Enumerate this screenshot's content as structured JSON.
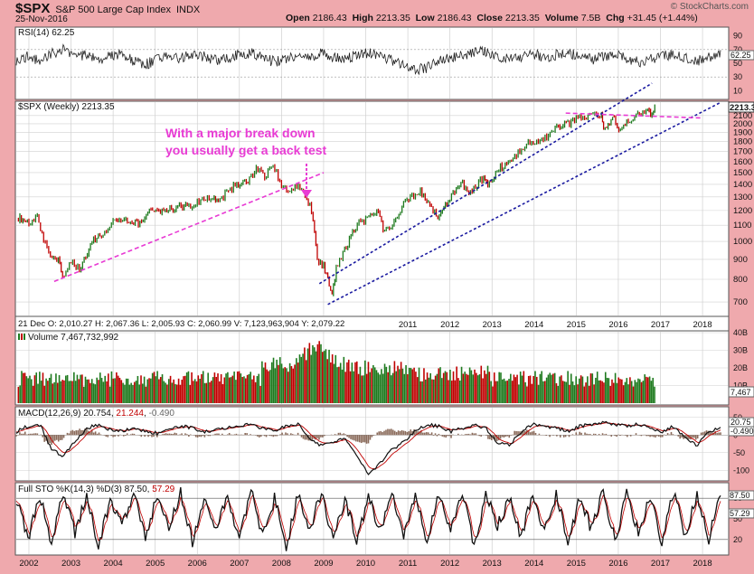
{
  "header": {
    "symbol": "$SPX",
    "name": "S&P 500 Large Cap Index",
    "exchange": "INDX",
    "date": "25-Nov-2016",
    "open_label": "Open",
    "open": "2186.43",
    "high_label": "High",
    "high": "2213.35",
    "low_label": "Low",
    "low": "2186.43",
    "close_label": "Close",
    "close": "2213.35",
    "volume_label": "Volume",
    "volume": "7.5B",
    "chg_label": "Chg",
    "chg": "+31.45 (+1.44%)",
    "watermark": "© StockCharts.com",
    "accent_up": "#1e7a1e",
    "accent_down": "#c00000"
  },
  "chart_data": [
    {
      "type": "line",
      "title": "RSI(14) 62.25",
      "value_label": "62.25",
      "yticks": [
        10,
        30,
        50,
        70,
        90
      ],
      "ylim": [
        0,
        100
      ],
      "reference_lines": [
        30,
        70
      ],
      "series": [
        {
          "values": [
            55,
            60,
            52,
            65,
            70,
            58,
            62,
            55,
            60,
            66,
            52,
            48,
            56,
            62,
            58,
            64,
            60,
            55,
            58,
            62,
            66,
            58,
            52,
            56,
            62,
            60,
            64,
            58,
            55,
            62,
            66,
            60,
            54,
            48,
            40,
            44,
            52,
            58,
            62,
            66,
            68,
            60,
            56,
            60,
            64,
            58,
            62,
            66,
            60,
            55,
            60,
            62,
            58,
            52,
            56,
            60,
            62,
            58,
            54,
            60,
            62.25
          ]
        }
      ]
    },
    {
      "type": "line",
      "title": "$SPX (Weekly) 2213.35",
      "price_label": "2213.35",
      "y_scale": "log",
      "yticks": [
        700,
        800,
        900,
        1000,
        1100,
        1200,
        1300,
        1400,
        1500,
        1600,
        1700,
        1800,
        1900,
        2000,
        2100
      ],
      "ylim": [
        650,
        2260
      ],
      "xlabels": [
        "2002",
        "2003",
        "2004",
        "2005",
        "2006",
        "2007",
        "2008",
        "2009",
        "2010",
        "2011",
        "2012",
        "2013",
        "2014",
        "2015",
        "2016",
        "2017",
        "2018"
      ],
      "crosshair_readout": "21 Dec O: 2,010.27   H: 2,067.36   L: 2,005.93   C: 2,060.99   V: 7,123,963,904   Y: 2,079.22",
      "series": [
        {
          "name": "SPX weekly close",
          "x": [
            2001.75,
            2002.0,
            2002.2,
            2002.35,
            2002.55,
            2002.7,
            2002.8,
            2003.0,
            2003.2,
            2003.5,
            2003.8,
            2004.0,
            2004.3,
            2004.6,
            2004.9,
            2005.2,
            2005.5,
            2005.8,
            2006.0,
            2006.4,
            2006.5,
            2006.9,
            2007.2,
            2007.4,
            2007.6,
            2007.8,
            2008.0,
            2008.2,
            2008.4,
            2008.6,
            2008.75,
            2008.85,
            2009.0,
            2009.1,
            2009.2,
            2009.3,
            2009.5,
            2009.8,
            2010.0,
            2010.3,
            2010.45,
            2010.6,
            2010.9,
            2011.3,
            2011.6,
            2011.75,
            2012.0,
            2012.3,
            2012.45,
            2012.8,
            2012.9,
            2013.2,
            2013.5,
            2013.9,
            2014.1,
            2014.5,
            2014.8,
            2015.0,
            2015.4,
            2015.6,
            2015.65,
            2015.9,
            2016.05,
            2016.2,
            2016.5,
            2016.7,
            2016.8,
            2016.9
          ],
          "values": [
            1150,
            1120,
            1150,
            1000,
            900,
            900,
            820,
            880,
            850,
            1000,
            1060,
            1130,
            1120,
            1110,
            1210,
            1190,
            1230,
            1230,
            1270,
            1300,
            1260,
            1400,
            1420,
            1530,
            1470,
            1550,
            1400,
            1350,
            1400,
            1300,
            1150,
            900,
            870,
            800,
            720,
            850,
            950,
            1110,
            1140,
            1200,
            1050,
            1100,
            1250,
            1340,
            1190,
            1150,
            1300,
            1400,
            1330,
            1450,
            1400,
            1550,
            1650,
            1800,
            1780,
            1950,
            2000,
            2060,
            2100,
            2110,
            1900,
            2090,
            1900,
            2050,
            2100,
            2170,
            2120,
            2213.35
          ]
        }
      ],
      "trendlines": [
        {
          "name": "2002-2007 support",
          "color": "#e83bd4",
          "style": "dashed",
          "from": [
            2002.6,
            790
          ],
          "to": [
            2009.0,
            1500
          ]
        },
        {
          "name": "upper channel",
          "color": "#1a1aa0",
          "style": "dotted",
          "from": [
            2008.9,
            780
          ],
          "to": [
            2016.8,
            2540
          ]
        },
        {
          "name": "lower channel",
          "color": "#1a1aa0",
          "style": "dotted",
          "from": [
            2009.1,
            690
          ],
          "to": [
            2018.4,
            2260
          ]
        },
        {
          "name": "2015 resistance",
          "color": "#e83bd4",
          "style": "dashed",
          "from": [
            2014.75,
            2130
          ],
          "to": [
            2017.95,
            2070
          ]
        }
      ],
      "annotations": [
        {
          "line1": "With a major break down",
          "line2": "you usually get a back test",
          "color": "#e83bd4"
        }
      ]
    },
    {
      "type": "bar",
      "title": "Volume 7,467,732,992",
      "value_label": "7,467",
      "yticks": [
        "10B",
        "20B",
        "30B",
        "40B"
      ],
      "ylim": [
        0,
        40
      ],
      "note": "weekly volume bars (billions), green up weeks / red down weeks"
    },
    {
      "type": "line",
      "title": "MACD(12,26,9)",
      "macd_value": "20.754",
      "signal_value": "21.244",
      "hist_value": "-0.490",
      "value_labels": [
        "20.75",
        "-0.490"
      ],
      "yticks": [
        50,
        0,
        -50,
        -100
      ],
      "ylim": [
        -125,
        75
      ],
      "series": [
        {
          "name": "MACD",
          "values": [
            10,
            25,
            30,
            -40,
            -60,
            -20,
            20,
            30,
            15,
            10,
            20,
            10,
            5,
            15,
            25,
            20,
            10,
            15,
            20,
            25,
            30,
            20,
            10,
            25,
            30,
            -10,
            -30,
            -20,
            -10,
            -60,
            -110,
            -80,
            -40,
            -20,
            10,
            30,
            25,
            10,
            20,
            30,
            20,
            -20,
            -30,
            10,
            30,
            25,
            20,
            10,
            25,
            30,
            35,
            30,
            25,
            30,
            20,
            10,
            25,
            -10,
            -30,
            10,
            20.754
          ]
        }
      ]
    },
    {
      "type": "line",
      "title": "Full STO %K(14,3) %D(3)",
      "k_value": "87.50",
      "d_value": "57.29",
      "value_labels": [
        "87.50",
        "57.29"
      ],
      "yticks": [
        20,
        50,
        80
      ],
      "ylim": [
        0,
        100
      ],
      "reference_lines": [
        20,
        80
      ],
      "series": [
        {
          "name": "%K",
          "values": [
            80,
            20,
            85,
            15,
            90,
            30,
            85,
            10,
            80,
            40,
            90,
            20,
            85,
            35,
            90,
            15,
            80,
            30,
            85,
            20,
            90,
            25,
            80,
            10,
            85,
            35,
            90,
            20,
            80,
            15,
            85,
            30,
            90,
            25,
            80,
            20,
            85,
            30,
            90,
            10,
            85,
            40,
            80,
            20,
            90,
            30,
            85,
            15,
            80,
            35,
            90,
            20,
            85,
            30,
            80,
            15,
            90,
            25,
            85,
            20,
            87.5
          ]
        }
      ]
    }
  ]
}
